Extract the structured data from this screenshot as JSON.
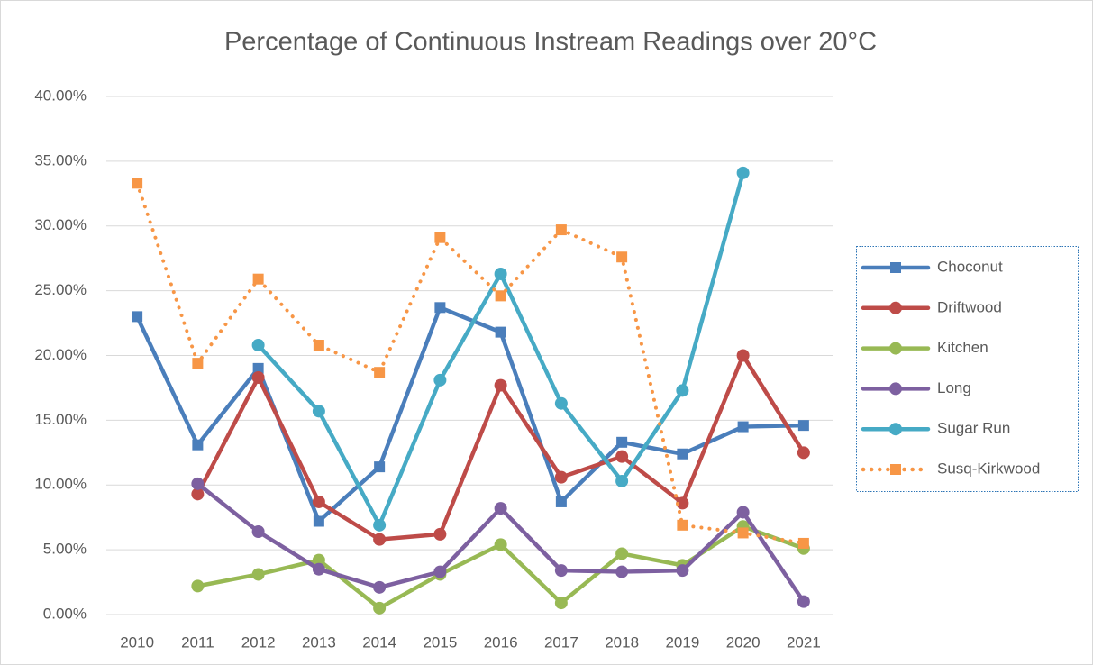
{
  "chart_data": {
    "type": "line",
    "title": "Percentage of Continuous Instream Readings over 20°C",
    "categories": [
      "2010",
      "2011",
      "2012",
      "2013",
      "2014",
      "2015",
      "2016",
      "2017",
      "2018",
      "2019",
      "2020",
      "2021"
    ],
    "series": [
      {
        "name": "Choconut",
        "color": "#4a7ebb",
        "marker": "square",
        "dotted": false,
        "values": [
          23.0,
          13.1,
          19.0,
          7.2,
          11.4,
          23.7,
          21.8,
          8.7,
          13.3,
          12.4,
          14.5,
          14.6
        ]
      },
      {
        "name": "Driftwood",
        "color": "#be4b48",
        "marker": "circle",
        "dotted": false,
        "values": [
          null,
          9.3,
          18.3,
          8.7,
          5.8,
          6.2,
          17.7,
          10.6,
          12.2,
          8.6,
          20.0,
          12.5
        ]
      },
      {
        "name": "Kitchen",
        "color": "#98b954",
        "marker": "circle",
        "dotted": false,
        "values": [
          null,
          2.2,
          3.1,
          4.2,
          0.5,
          3.1,
          5.4,
          0.9,
          4.7,
          3.8,
          6.8,
          5.1
        ]
      },
      {
        "name": "Long",
        "color": "#7d60a0",
        "marker": "circle",
        "dotted": false,
        "values": [
          null,
          10.1,
          6.4,
          3.5,
          2.1,
          3.3,
          8.2,
          3.4,
          3.3,
          3.4,
          7.9,
          1.0
        ]
      },
      {
        "name": "Sugar Run",
        "color": "#46aac5",
        "marker": "circle",
        "dotted": false,
        "values": [
          null,
          null,
          20.8,
          15.7,
          6.9,
          18.1,
          26.3,
          16.3,
          10.3,
          17.3,
          34.1,
          null
        ]
      },
      {
        "name": "Susq-Kirkwood",
        "color": "#f79646",
        "marker": "square",
        "dotted": true,
        "values": [
          33.3,
          19.4,
          25.9,
          20.8,
          18.7,
          29.1,
          24.6,
          29.7,
          27.6,
          6.9,
          6.3,
          5.5
        ]
      }
    ],
    "ylim": [
      0,
      40
    ],
    "yticks": [
      {
        "value": 0,
        "label": "0.00%"
      },
      {
        "value": 5,
        "label": "5.00%"
      },
      {
        "value": 10,
        "label": "10.00%"
      },
      {
        "value": 15,
        "label": "15.00%"
      },
      {
        "value": 20,
        "label": "20.00%"
      },
      {
        "value": 25,
        "label": "25.00%"
      },
      {
        "value": 30,
        "label": "30.00%"
      },
      {
        "value": 35,
        "label": "35.00%"
      },
      {
        "value": 40,
        "label": "40.00%"
      }
    ],
    "grid": true,
    "legend": "right"
  }
}
